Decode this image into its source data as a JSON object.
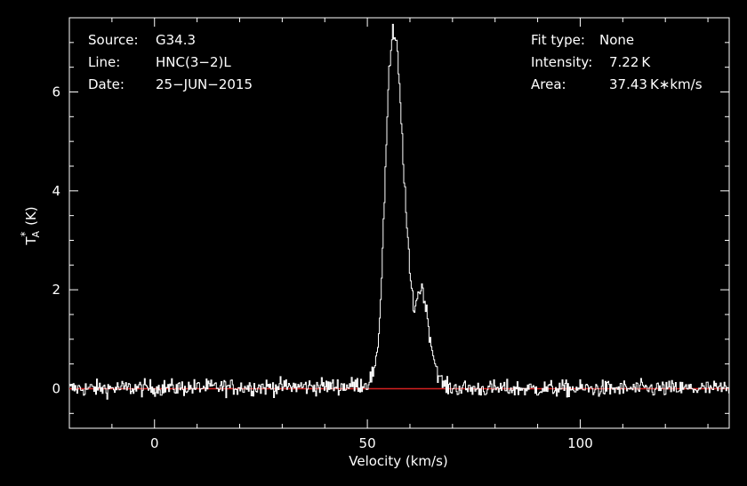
{
  "chart_data": {
    "type": "line",
    "xlabel": "Velocity (km/s)",
    "ylabel": {
      "base": "T",
      "superscript": "*",
      "subscript": "A",
      "unit": "(K)"
    },
    "xlim": [
      -20,
      135
    ],
    "ylim": [
      -0.8,
      7.5
    ],
    "x_ticks": [
      0,
      50,
      100
    ],
    "y_ticks": [
      0,
      2,
      4,
      6
    ],
    "grid": false,
    "colors": {
      "background": "#000000",
      "spectrum": "#ffffff",
      "baseline": "#d42020"
    },
    "info_left": [
      {
        "label": "Source:",
        "value": "G34.3"
      },
      {
        "label": "Line:",
        "value": "HNC(3−2)L"
      },
      {
        "label": "Date:",
        "value": "25−JUN−2015"
      }
    ],
    "info_right": [
      {
        "label": "Fit type:",
        "value": "None"
      },
      {
        "label": "Intensity:",
        "value": "7.22 K"
      },
      {
        "label": "Area:",
        "value": "37.43 K∗km/s"
      }
    ],
    "series": [
      {
        "x": [
          -20,
          45,
          50,
          52,
          53,
          54,
          55,
          56,
          57,
          58,
          59,
          60,
          61,
          62,
          63,
          64,
          65,
          66,
          67,
          68,
          69,
          75,
          135
        ],
        "values": [
          0,
          0.05,
          0.1,
          0.4,
          1.5,
          3.8,
          6.3,
          7.2,
          6.9,
          5.4,
          3.7,
          2.3,
          1.6,
          1.95,
          2.05,
          1.5,
          0.9,
          0.5,
          0.2,
          0.07,
          0.02,
          0,
          0
        ],
        "noise_rms": 0.12
      }
    ],
    "baseline_value": 0
  }
}
